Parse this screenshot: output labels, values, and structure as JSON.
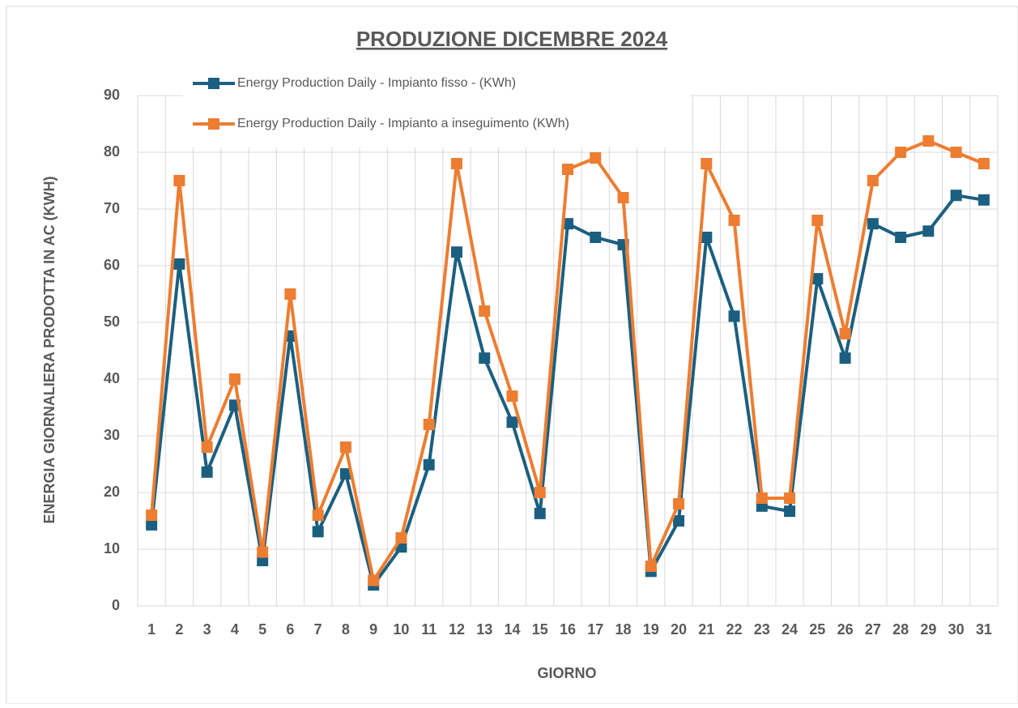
{
  "chart_data": {
    "type": "line",
    "title": "PRODUZIONE DICEMBRE 2024",
    "x_label": "GIORNO",
    "y_label": "ENERGIA GIORNALIERA PRODOTTA IN AC (KWH)",
    "categories": [
      "1",
      "2",
      "3",
      "4",
      "5",
      "6",
      "7",
      "8",
      "9",
      "10",
      "11",
      "12",
      "13",
      "14",
      "15",
      "16",
      "17",
      "18",
      "19",
      "20",
      "21",
      "22",
      "23",
      "24",
      "25",
      "26",
      "27",
      "28",
      "29",
      "30",
      "31"
    ],
    "series": [
      {
        "name": "Energy Production Daily - Impianto fisso -  (KWh)",
        "color": "#1b5f80",
        "values": [
          14.3,
          60.3,
          23.6,
          35.4,
          8,
          47.6,
          13.1,
          23.3,
          3.7,
          10.4,
          24.9,
          62.4,
          43.7,
          32.4,
          16.3,
          67.4,
          65,
          63.7,
          6.1,
          15,
          65,
          51.1,
          17.6,
          16.7,
          57.7,
          43.7,
          67.4,
          65,
          66.1,
          72.4,
          71.6
        ]
      },
      {
        "name": "Energy Production Daily - Impianto a inseguimento (KWh)",
        "color": "#ed7d31",
        "values": [
          16,
          75,
          28,
          40,
          9.5,
          55,
          16,
          28,
          4.5,
          12,
          32,
          78,
          52,
          37,
          20,
          77,
          79,
          72,
          7,
          18,
          78,
          68,
          19,
          19,
          68,
          48,
          75,
          80,
          82,
          80,
          78
        ]
      }
    ],
    "ylim": [
      0,
      90
    ],
    "yticks": [
      0,
      10,
      20,
      30,
      40,
      50,
      60,
      70,
      80,
      90
    ],
    "grid": true
  }
}
